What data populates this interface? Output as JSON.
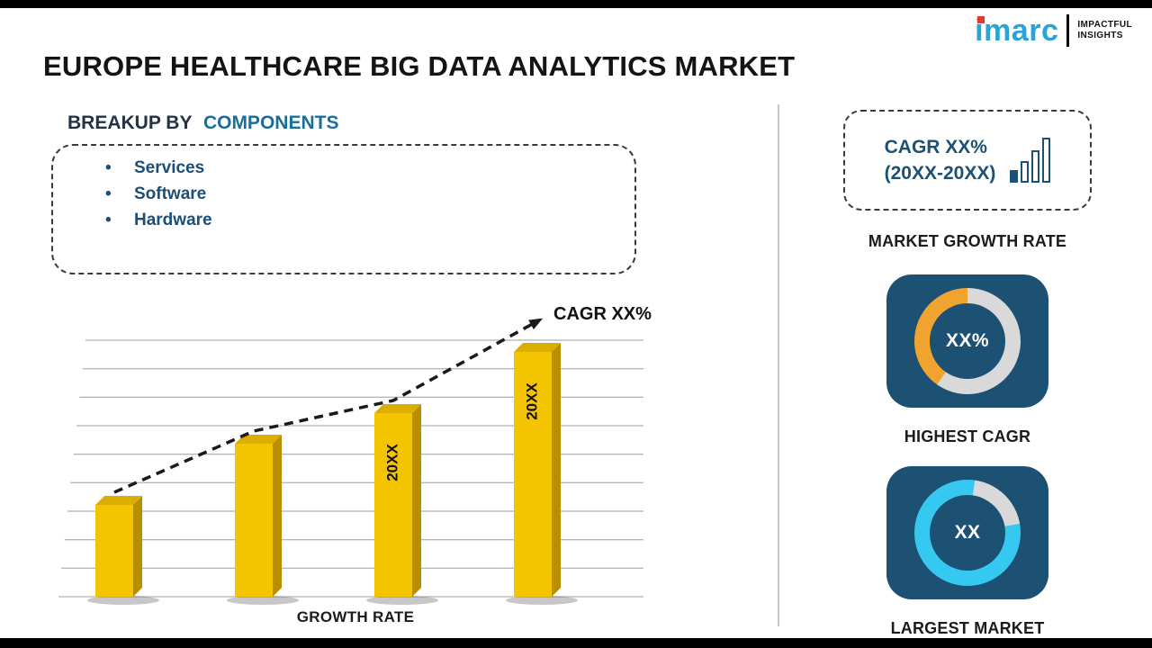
{
  "logo": {
    "brand": "imarc",
    "tagline_line1": "IMPACTFUL",
    "tagline_line2": "INSIGHTS"
  },
  "title": "EUROPE HEALTHCARE BIG DATA ANALYTICS MARKET",
  "breakup": {
    "heading_prefix": "BREAKUP BY",
    "heading_highlight": "COMPONENTS",
    "items": [
      "Services",
      "Software",
      "Hardware"
    ]
  },
  "chart_data": {
    "type": "bar",
    "title": "",
    "categories": [
      "",
      "",
      "20XX",
      "20XX"
    ],
    "values": [
      30,
      50,
      60,
      80
    ],
    "xlabel": "GROWTH RATE",
    "ylabel": "",
    "grid": true,
    "trend": "rising-dashed-arrow",
    "trend_label": "CAGR XX%",
    "bar_color": "#f5c400"
  },
  "right_panel": {
    "growth_card": {
      "line1": "CAGR XX%",
      "line2": "(20XX-20XX)"
    },
    "growth_label": "MARKET GROWTH RATE",
    "highest_cagr": {
      "value": "XX%",
      "label": "HIGHEST CAGR"
    },
    "largest_market": {
      "value": "XX",
      "label": "LARGEST MARKET"
    }
  },
  "colors": {
    "navy": "#1d5174",
    "gold": "#f5c400",
    "gold_top": "#dcae00",
    "gold_side": "#b98f00",
    "cyan": "#35c8f0",
    "orange": "#f0a32f",
    "ring_gray": "#d9d9d9",
    "accent_heading": "#1a6f99",
    "list_text": "#1d4e77",
    "imarc_blue": "#2aa3d8",
    "imarc_red": "#e23b2e"
  }
}
